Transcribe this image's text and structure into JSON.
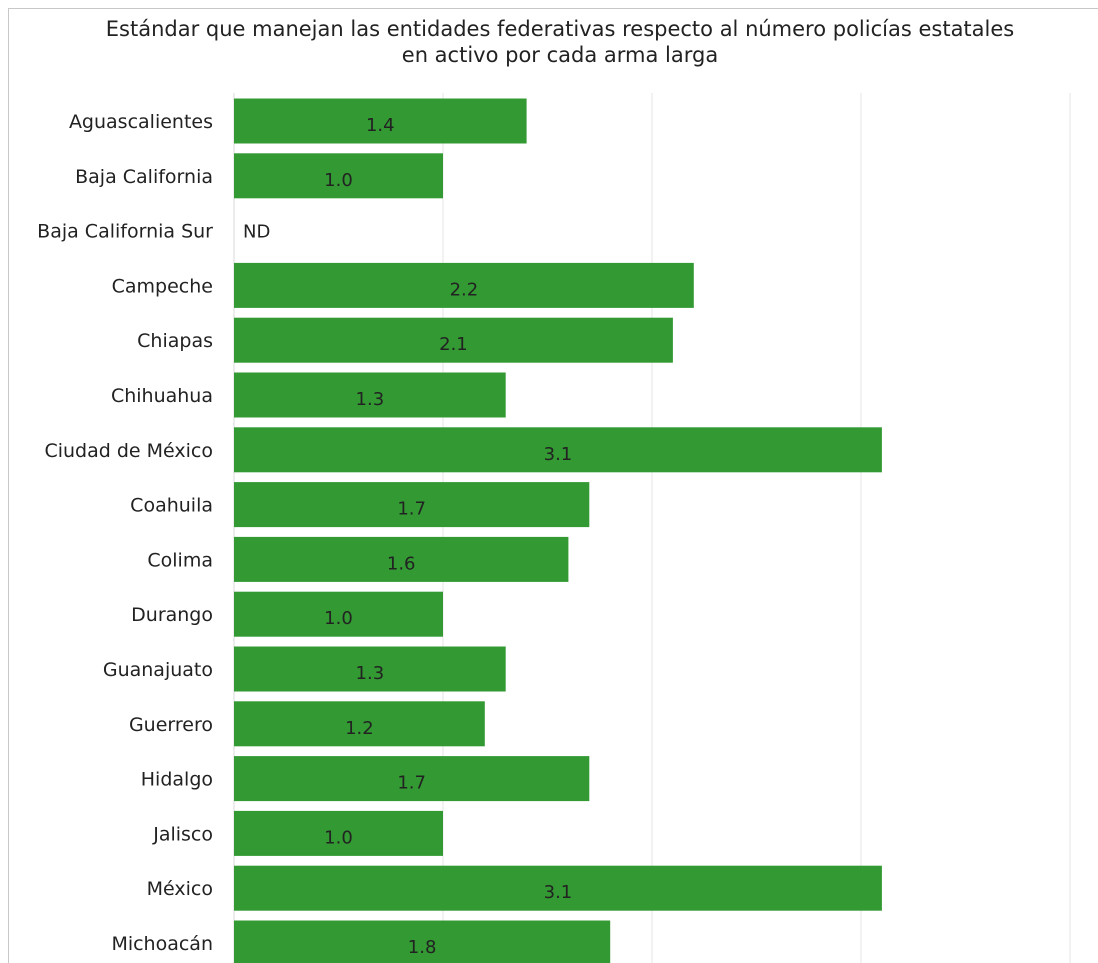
{
  "chart_data": {
    "type": "bar",
    "orientation": "horizontal",
    "title": "Estándar que manejan las entidades federativas respecto al número policías estatales\nen activo  por cada arma larga",
    "xlabel": "",
    "ylabel": "",
    "xlim": [
      0,
      4
    ],
    "grid": true,
    "legend": "none",
    "bar_color": "#339933",
    "categories": [
      "Aguascalientes",
      "Baja California",
      "Baja California Sur",
      "Campeche",
      "Chiapas",
      "Chihuahua",
      "Ciudad de México",
      "Coahuila",
      "Colima",
      "Durango",
      "Guanajuato",
      "Guerrero",
      "Hidalgo",
      "Jalisco",
      "México",
      "Michoacán"
    ],
    "values": [
      1.4,
      1.0,
      null,
      2.2,
      2.1,
      1.3,
      3.1,
      1.7,
      1.6,
      1.0,
      1.3,
      1.2,
      1.7,
      1.0,
      3.1,
      1.8
    ],
    "data_labels": [
      "1.4",
      "1.0",
      "ND",
      "2.2",
      "2.1",
      "1.3",
      "3.1",
      "1.7",
      "1.6",
      "1.0",
      "1.3",
      "1.2",
      "1.7",
      "1.0",
      "3.1",
      "1.8"
    ]
  }
}
